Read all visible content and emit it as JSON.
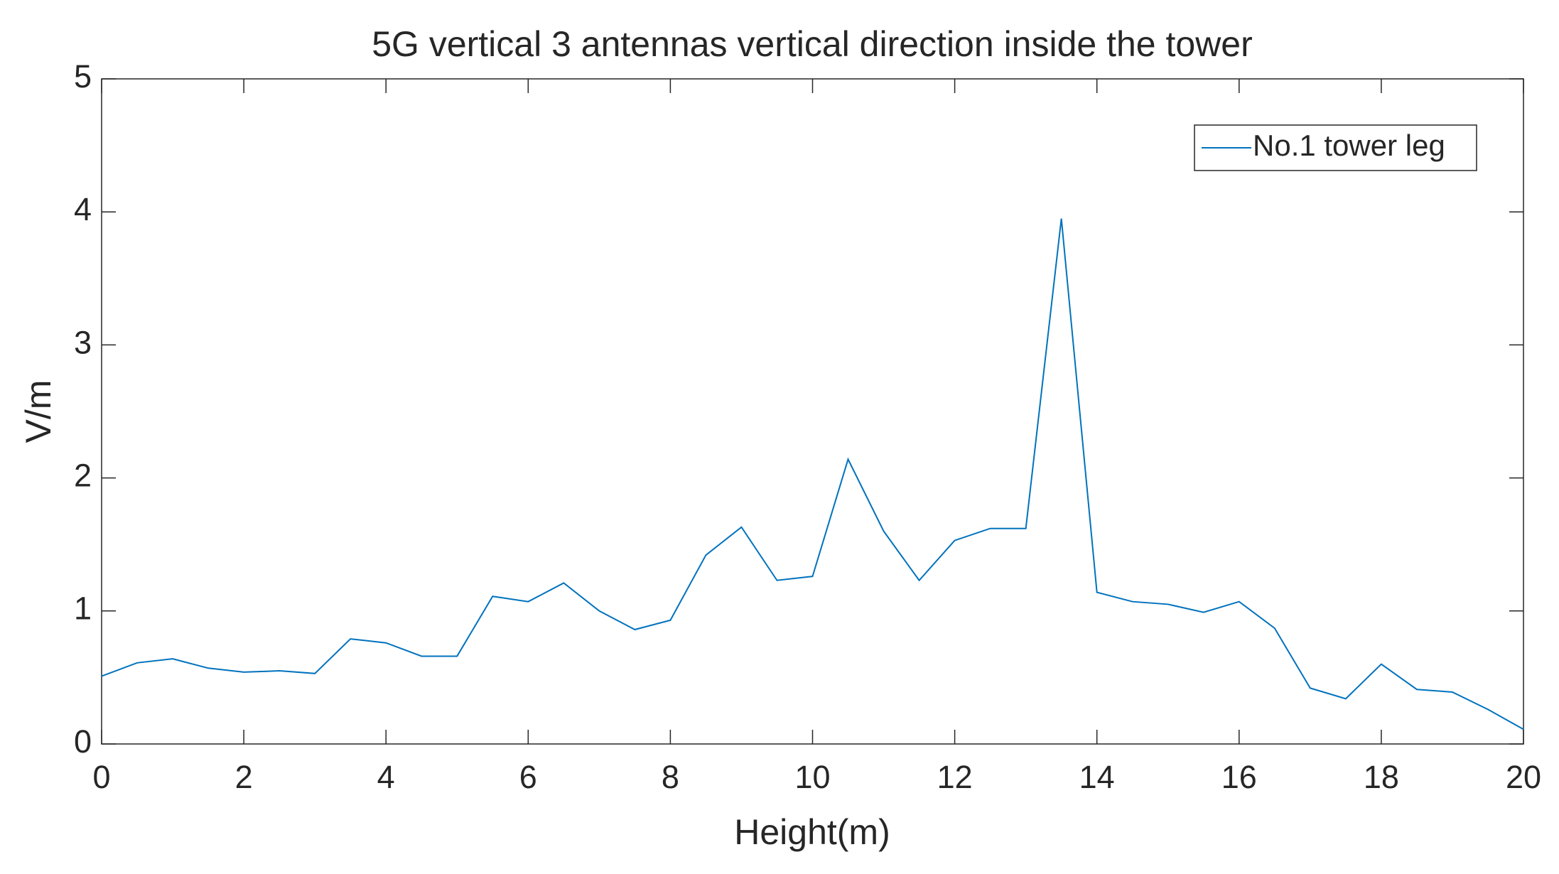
{
  "chart_data": {
    "type": "line",
    "title": "5G vertical 3 antennas vertical direction inside the tower",
    "x_label": "Height(m)",
    "y_label": "V/m",
    "x": [
      0,
      0.5,
      1,
      1.5,
      2,
      2.5,
      3,
      3.5,
      4,
      4.5,
      5,
      5.5,
      6,
      6.5,
      7,
      7.5,
      8,
      8.5,
      9,
      9.5,
      10,
      10.5,
      11,
      11.5,
      12,
      12.5,
      13,
      13.5,
      14,
      14.5,
      15,
      15.5,
      16,
      16.5,
      17,
      17.5,
      18,
      18.5,
      19,
      19.5,
      20
    ],
    "series": [
      {
        "name": "No.1 tower leg",
        "color": "#0072bd",
        "values": [
          0.51,
          0.61,
          0.64,
          0.57,
          0.54,
          0.55,
          0.53,
          0.79,
          0.76,
          0.66,
          0.66,
          1.11,
          1.07,
          1.21,
          1.0,
          0.86,
          0.93,
          1.42,
          1.63,
          1.23,
          1.26,
          2.14,
          1.6,
          1.23,
          1.53,
          1.62,
          1.62,
          3.95,
          1.14,
          1.07,
          1.05,
          0.99,
          1.07,
          0.87,
          0.42,
          0.34,
          0.6,
          0.41,
          0.39,
          0.26,
          0.11
        ]
      }
    ],
    "xlim": [
      0,
      20
    ],
    "xticks": [
      0,
      2,
      4,
      6,
      8,
      10,
      12,
      14,
      16,
      18,
      20
    ],
    "ylim": [
      0,
      5
    ],
    "yticks": [
      0,
      1,
      2,
      3,
      4,
      5
    ],
    "legend": "northeast"
  }
}
